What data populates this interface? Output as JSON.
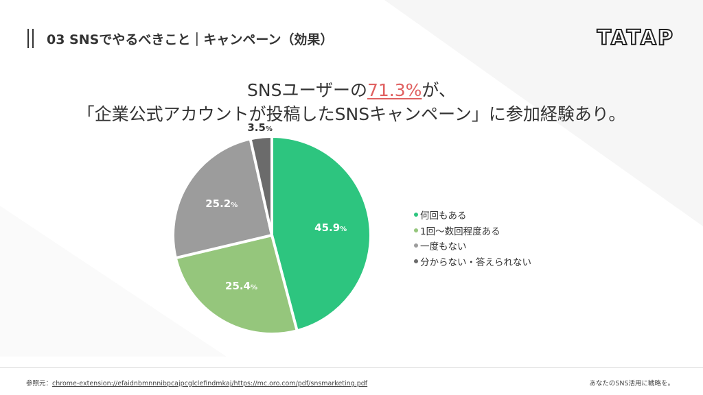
{
  "header": {
    "title": "03 SNSでやるべきこと｜キャンペーン（効果）",
    "logo": "TATAP"
  },
  "headline": {
    "line1_before": "SNSユーザーの",
    "line1_highlight": "71.3%",
    "line1_after": "が、",
    "line2": "「企業公式アカウントが投稿したSNSキャンペーン」に参加経験あり。"
  },
  "chart_data": {
    "type": "pie",
    "title": "",
    "unit": "%",
    "slices": [
      {
        "label": "何回もある",
        "value": 45.9,
        "color": "#2dc57f"
      },
      {
        "label": "1回～数回程度ある",
        "value": 25.4,
        "color": "#95c67c"
      },
      {
        "label": "一度もない",
        "value": 25.2,
        "color": "#9c9c9c"
      },
      {
        "label": "分からない・答えられない",
        "value": 3.5,
        "color": "#6b6b6b"
      }
    ],
    "legend_position": "right",
    "start": "top",
    "direction": "clockwise"
  },
  "footer": {
    "source_prefix": "参照元：",
    "source_link": "chrome-extension://efaidnbmnnnibpcajpcglclefindmkaj/https://mc.oro.com/pdf/snsmarketing.pdf",
    "tagline": "あなたのSNS活用に戦略を。"
  },
  "colors": {
    "accent": "#e06060",
    "text": "#333333"
  }
}
